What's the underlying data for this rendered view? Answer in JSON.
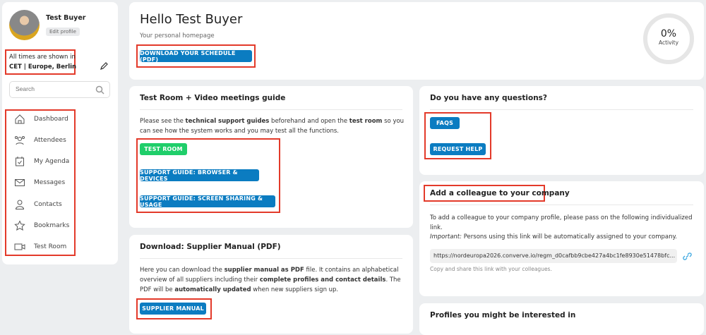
{
  "profile": {
    "name": "Test Buyer",
    "edit_label": "Edit profile"
  },
  "timezone": {
    "line1": "All times are shown in",
    "line2": "CET | Europe, Berlin"
  },
  "search": {
    "placeholder": "Search"
  },
  "nav": [
    {
      "label": "Dashboard",
      "icon": "home-icon"
    },
    {
      "label": "Attendees",
      "icon": "users-icon"
    },
    {
      "label": "My Agenda",
      "icon": "calendar-check-icon"
    },
    {
      "label": "Messages",
      "icon": "mail-icon"
    },
    {
      "label": "Contacts",
      "icon": "user-icon"
    },
    {
      "label": "Bookmarks",
      "icon": "star-icon"
    },
    {
      "label": "Test Room",
      "icon": "video-icon"
    }
  ],
  "header": {
    "title": "Hello Test Buyer",
    "subtitle": "Your personal homepage",
    "download_label": "DOWNLOAD YOUR SCHEDULE (PDF)",
    "activity_value": "0%",
    "activity_label": "Activity",
    "activity_percent": 0
  },
  "testroom": {
    "title": "Test Room + Video meetings guide",
    "text": [
      "Please see the ",
      "technical support guides",
      " beforehand and open the ",
      "test room",
      " so you can see how the system works and you may test all the functions."
    ],
    "btn_testroom": "TEST ROOM",
    "btn_browser": "SUPPORT GUIDE: BROWSER & DEVICES",
    "btn_sharing": "SUPPORT GUIDE: SCREEN SHARING & USAGE"
  },
  "questions": {
    "title": "Do you have any questions?",
    "faqs": "FAQS",
    "help": "REQUEST HELP"
  },
  "manual": {
    "title": "Download: Supplier Manual (PDF)",
    "text": [
      "Here you can download the ",
      "supplier manual as PDF",
      " file. It contains an alphabetical overview of all suppliers including their ",
      "complete profiles and contact details",
      ". The PDF will be ",
      "automatically updated",
      " when new suppliers sign up."
    ],
    "button": "SUPPLIER MANUAL"
  },
  "colleague": {
    "title": "Add a colleague to your company",
    "text": "To add a colleague to your company profile, please pass on the following individualized link.",
    "important_label": "Important:",
    "important_text": " Persons using this link will be automatically assigned to your company.",
    "link": "https://nordeuropa2026.converve.io/regm_d0cafbb9cbe427a4bc1fe8930e51478bfc...",
    "hint": "Copy and share this link with your colleagues."
  },
  "profiles": {
    "title": "Profiles you might be interested in"
  }
}
